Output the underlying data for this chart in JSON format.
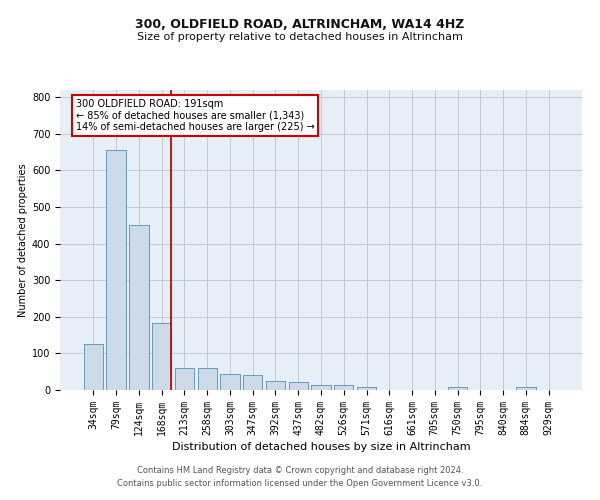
{
  "title": "300, OLDFIELD ROAD, ALTRINCHAM, WA14 4HZ",
  "subtitle": "Size of property relative to detached houses in Altrincham",
  "xlabel": "Distribution of detached houses by size in Altrincham",
  "ylabel": "Number of detached properties",
  "footer_line1": "Contains HM Land Registry data © Crown copyright and database right 2024.",
  "footer_line2": "Contains public sector information licensed under the Open Government Licence v3.0.",
  "categories": [
    "34sqm",
    "79sqm",
    "124sqm",
    "168sqm",
    "213sqm",
    "258sqm",
    "303sqm",
    "347sqm",
    "392sqm",
    "437sqm",
    "482sqm",
    "526sqm",
    "571sqm",
    "616sqm",
    "661sqm",
    "705sqm",
    "750sqm",
    "795sqm",
    "840sqm",
    "884sqm",
    "929sqm"
  ],
  "values": [
    125,
    655,
    450,
    183,
    60,
    60,
    45,
    42,
    25,
    23,
    13,
    13,
    8,
    0,
    0,
    0,
    7,
    0,
    0,
    7,
    0
  ],
  "bar_color": "#ccdaea",
  "bar_edge_color": "#6699bb",
  "highlight_index": 3,
  "highlight_color": "#cc0000",
  "ylim": [
    0,
    820
  ],
  "yticks": [
    0,
    100,
    200,
    300,
    400,
    500,
    600,
    700,
    800
  ],
  "annotation_title": "300 OLDFIELD ROAD: 191sqm",
  "annotation_line1": "← 85% of detached houses are smaller (1,343)",
  "annotation_line2": "14% of semi-detached houses are larger (225) →",
  "annotation_box_color": "#cc0000",
  "background_color": "#e8eef5",
  "grid_color": "#c0c9d5",
  "title_fontsize": 9,
  "subtitle_fontsize": 8,
  "xlabel_fontsize": 8,
  "ylabel_fontsize": 7,
  "tick_fontsize": 7,
  "footer_fontsize": 6,
  "ann_fontsize": 7
}
